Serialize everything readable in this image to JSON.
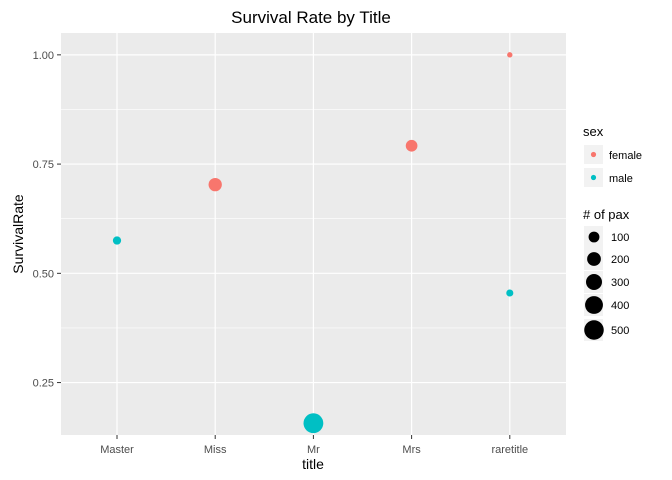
{
  "chart_data": {
    "type": "scatter",
    "title": "Survival Rate by Title",
    "xlabel": "title",
    "ylabel": "SurvivalRate",
    "categories": [
      "Master",
      "Miss",
      "Mr",
      "Mrs",
      "raretitle"
    ],
    "ylim": [
      0.13,
      1.05
    ],
    "yticks": [
      "0.25",
      "0.50",
      "0.75",
      "1.00"
    ],
    "ytick_values": [
      0.25,
      0.5,
      0.75,
      1.0
    ],
    "grid": true,
    "points": [
      {
        "category": "Master",
        "sex": "male",
        "value": 0.575,
        "pax": 40
      },
      {
        "category": "Miss",
        "sex": "female",
        "value": 0.703,
        "pax": 182
      },
      {
        "category": "Mr",
        "sex": "male",
        "value": 0.157,
        "pax": 517
      },
      {
        "category": "Mrs",
        "sex": "female",
        "value": 0.792,
        "pax": 125
      },
      {
        "category": "raretitle",
        "sex": "female",
        "value": 1.0,
        "pax": 5
      },
      {
        "category": "raretitle",
        "sex": "male",
        "value": 0.455,
        "pax": 22
      }
    ],
    "legend_color": {
      "title": "sex",
      "items": [
        {
          "label": "female",
          "color": "#F8766D"
        },
        {
          "label": "male",
          "color": "#00BFC4"
        }
      ]
    },
    "legend_size": {
      "title": "# of pax",
      "items": [
        {
          "label": "100",
          "value": 100
        },
        {
          "label": "200",
          "value": 200
        },
        {
          "label": "300",
          "value": 300
        },
        {
          "label": "400",
          "value": 400
        },
        {
          "label": "500",
          "value": 500
        }
      ]
    },
    "legend_placement": "right",
    "colors": {
      "panel": "#EBEBEB",
      "grid": "#FFFFFF",
      "female": "#F8766D",
      "male": "#00BFC4",
      "size_key": "#000000"
    }
  }
}
